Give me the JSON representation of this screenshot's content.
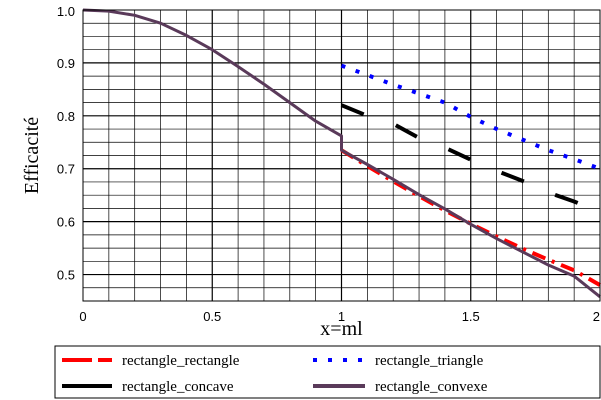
{
  "chart_data": {
    "type": "line",
    "title": "",
    "xlabel": "x=ml",
    "ylabel": "Efficacité",
    "xlim": [
      0,
      2
    ],
    "ylim": [
      0.45,
      1.0
    ],
    "grid": true,
    "legend_position": "bottom",
    "x_ticks": [
      "0",
      "0.5",
      "1",
      "1.5",
      "2"
    ],
    "y_ticks": [
      "0.5",
      "0.6",
      "0.7",
      "0.8",
      "0.9",
      "1.0"
    ],
    "series": [
      {
        "name": "rectangle_rectangle",
        "color": "#ff0000",
        "style": "dashdot",
        "points": [
          [
            1.0,
            0.735
          ],
          [
            1.1,
            0.705
          ],
          [
            1.2,
            0.676
          ],
          [
            1.3,
            0.648
          ],
          [
            1.4,
            0.621
          ],
          [
            1.5,
            0.596
          ],
          [
            1.6,
            0.572
          ],
          [
            1.7,
            0.549
          ],
          [
            1.8,
            0.528
          ],
          [
            1.9,
            0.508
          ],
          [
            2.0,
            0.48
          ]
        ]
      },
      {
        "name": "rectangle_triangle",
        "color": "#0000ff",
        "style": "dotted",
        "points": [
          [
            1.0,
            0.895
          ],
          [
            1.1,
            0.877
          ],
          [
            1.2,
            0.859
          ],
          [
            1.3,
            0.842
          ],
          [
            1.4,
            0.825
          ],
          [
            1.5,
            0.798
          ],
          [
            1.6,
            0.775
          ],
          [
            1.7,
            0.755
          ],
          [
            1.8,
            0.735
          ],
          [
            1.9,
            0.718
          ],
          [
            2.0,
            0.7
          ]
        ]
      },
      {
        "name": "rectangle_concave",
        "color": "#000000",
        "style": "longdash",
        "points": [
          [
            1.0,
            0.82
          ],
          [
            1.1,
            0.8
          ],
          [
            1.2,
            0.785
          ],
          [
            1.3,
            0.758
          ],
          [
            1.4,
            0.74
          ],
          [
            1.5,
            0.717
          ],
          [
            1.6,
            0.696
          ],
          [
            1.7,
            0.677
          ],
          [
            1.8,
            0.655
          ],
          [
            1.9,
            0.638
          ],
          [
            2.0,
            0.618
          ]
        ]
      },
      {
        "name": "rectangle_convexe",
        "color": "#5a3a5a",
        "style": "solid",
        "points": [
          [
            0.0,
            1.0
          ],
          [
            0.1,
            0.998
          ],
          [
            0.2,
            0.99
          ],
          [
            0.3,
            0.975
          ],
          [
            0.4,
            0.952
          ],
          [
            0.5,
            0.925
          ],
          [
            0.6,
            0.893
          ],
          [
            0.7,
            0.86
          ],
          [
            0.8,
            0.825
          ],
          [
            0.9,
            0.79
          ],
          [
            1.0,
            0.762
          ],
          [
            1.0,
            0.735
          ],
          [
            1.1,
            0.708
          ],
          [
            1.2,
            0.68
          ],
          [
            1.3,
            0.651
          ],
          [
            1.4,
            0.624
          ],
          [
            1.5,
            0.595
          ],
          [
            1.6,
            0.568
          ],
          [
            1.7,
            0.543
          ],
          [
            1.8,
            0.518
          ],
          [
            1.9,
            0.497
          ],
          [
            2.0,
            0.458
          ]
        ]
      }
    ]
  }
}
